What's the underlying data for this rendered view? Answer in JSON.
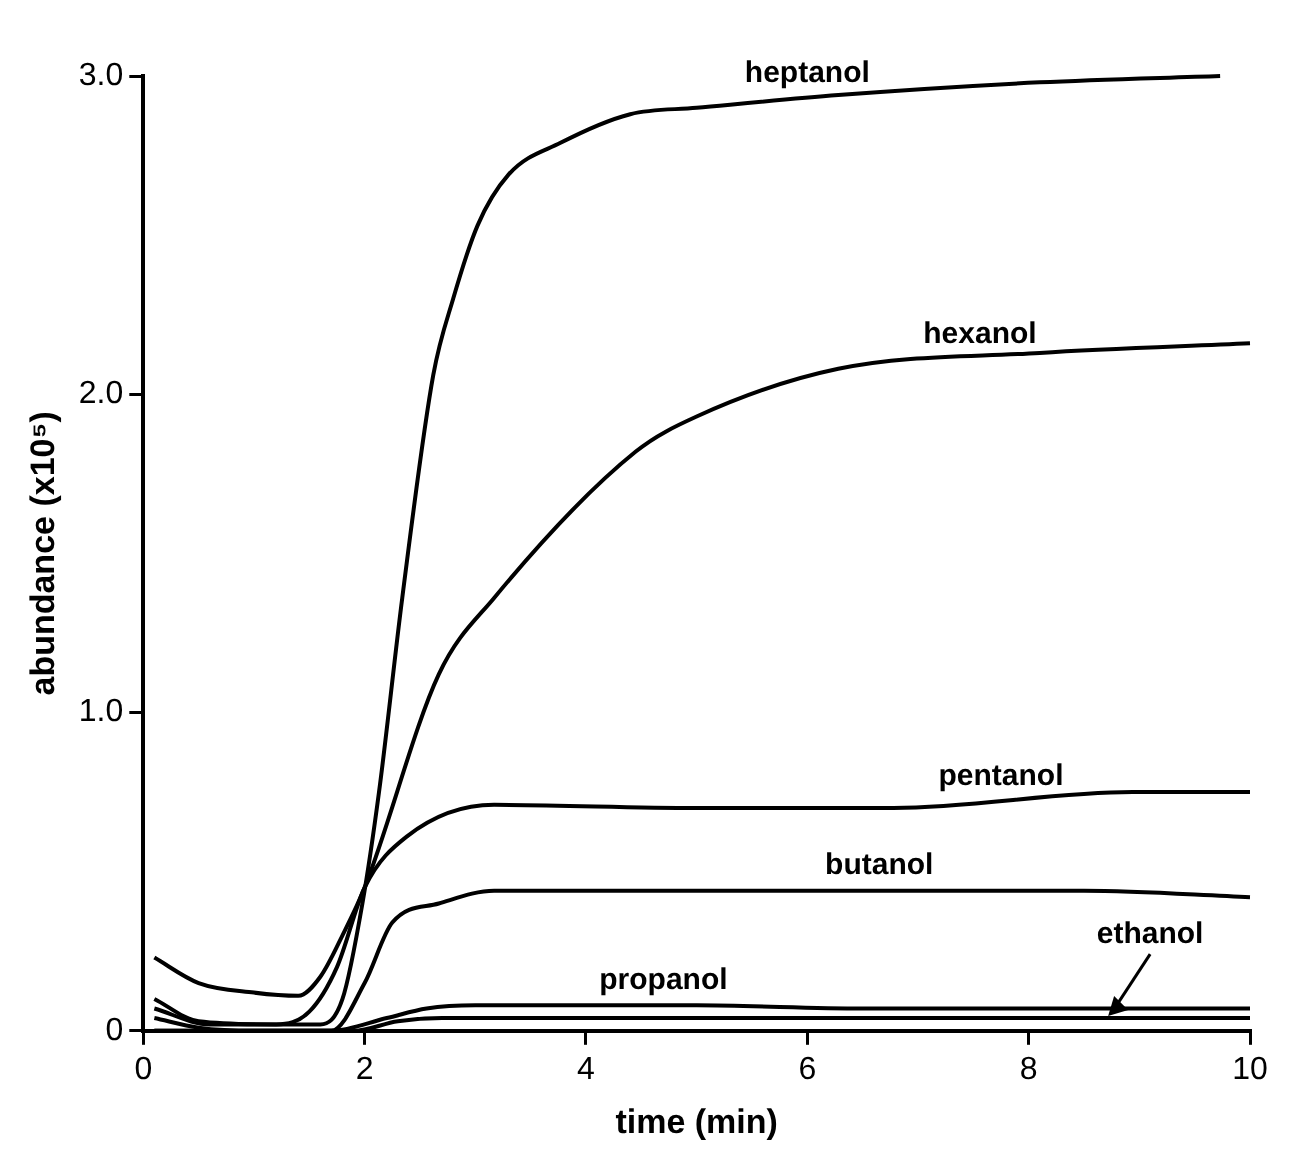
{
  "chart_data": {
    "type": "line",
    "xlabel": "time (min)",
    "ylabel": "abundance (x10⁵)",
    "xlim": [
      0,
      10
    ],
    "ylim": [
      0,
      3
    ],
    "xticks": [
      0,
      2,
      4,
      6,
      8,
      10
    ],
    "yticks": [
      0,
      {
        "value": 1,
        "label": "1.0"
      },
      {
        "value": 2,
        "label": "2.0"
      },
      {
        "value": 3,
        "label": "3.0"
      }
    ],
    "grid": false,
    "legend": false,
    "marker": "none",
    "line_style": "solid",
    "series": [
      {
        "color": "#000000",
        "x": [
          0.1,
          0.6,
          1.0,
          1.3,
          1.6,
          1.8,
          1.98,
          2.13,
          2.34,
          2.62,
          2.8,
          3.02,
          3.3,
          3.77,
          4.4,
          5.0,
          6.28,
          8.1,
          9.73
        ],
        "values": [
          0.07,
          0.02,
          0.02,
          0.02,
          0.02,
          0.1,
          0.4,
          0.75,
          1.36,
          2.06,
          2.3,
          2.53,
          2.69,
          2.79,
          2.88,
          2.9,
          2.94,
          2.98,
          3.0
        ]
      },
      {
        "color": "#000000",
        "x": [
          0.1,
          0.5,
          1.0,
          1.4,
          1.6,
          1.8,
          2.0,
          2.67,
          3.17,
          4.45,
          5.0,
          6.28,
          8.1,
          10
        ],
        "values": [
          0.23,
          0.15,
          0.12,
          0.11,
          0.17,
          0.3,
          0.45,
          1.12,
          1.36,
          1.82,
          1.93,
          2.08,
          2.13,
          2.16
        ]
      },
      {
        "color": "#000000",
        "x": [
          0.1,
          0.5,
          1.2,
          1.5,
          1.75,
          2.0,
          2.38,
          3.17,
          5.0,
          6.78,
          8.94,
          10
        ],
        "values": [
          0.1,
          0.03,
          0.02,
          0.06,
          0.2,
          0.45,
          0.61,
          0.71,
          0.7,
          0.7,
          0.75,
          0.75
        ]
      },
      {
        "color": "#000000",
        "x": [
          0.1,
          0.5,
          1.0,
          1.7,
          2.0,
          2.25,
          2.67,
          3.17,
          5.0,
          8.5,
          10
        ],
        "values": [
          0.04,
          0.01,
          0.0,
          0.0,
          0.15,
          0.34,
          0.4,
          0.44,
          0.44,
          0.44,
          0.42
        ]
      },
      {
        "color": "#000000",
        "x": [
          0.1,
          1.0,
          1.7,
          2.2,
          2.56,
          3.0,
          5.0,
          6.5,
          10
        ],
        "values": [
          0.0,
          0.0,
          0.0,
          0.04,
          0.07,
          0.08,
          0.08,
          0.07,
          0.07
        ]
      },
      {
        "color": "#000000",
        "x": [
          0.1,
          1.0,
          1.9,
          2.3,
          2.7,
          5.0,
          10
        ],
        "values": [
          0.0,
          0.0,
          0.0,
          0.03,
          0.04,
          0.04,
          0.04
        ]
      }
    ],
    "annotations": [
      {
        "text": "heptanol",
        "x": 6.0,
        "y": 2.93
      },
      {
        "text": "hexanol",
        "x": 7.56,
        "y": 2.11
      },
      {
        "text": "pentanol",
        "x": 7.75,
        "y": 0.72
      },
      {
        "text": "butanol",
        "x": 6.65,
        "y": 0.44
      },
      {
        "text": "propanol",
        "x": 4.7,
        "y": 0.08
      },
      {
        "text": "ethanol",
        "x": 8.7,
        "y": 0.04
      }
    ]
  }
}
